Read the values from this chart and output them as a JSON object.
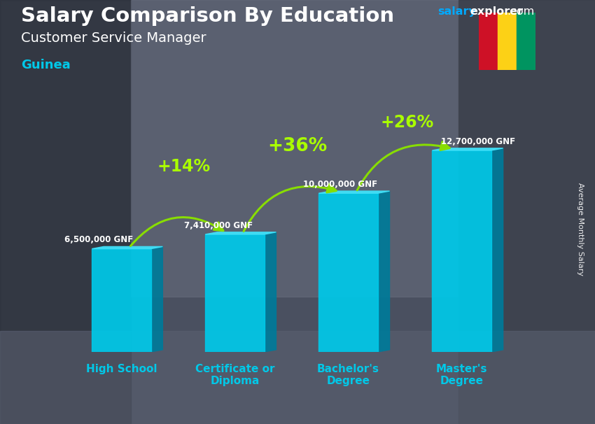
{
  "title": "Salary Comparison By Education",
  "subtitle": "Customer Service Manager",
  "country": "Guinea",
  "ylabel": "Average Monthly Salary",
  "categories": [
    "High School",
    "Certificate or\nDiploma",
    "Bachelor's\nDegree",
    "Master's\nDegree"
  ],
  "values": [
    6500000,
    7410000,
    10000000,
    12700000
  ],
  "bar_color_front": "#00c8e8",
  "bar_color_side": "#007a99",
  "bar_color_top": "#40e0f8",
  "value_labels": [
    "6,500,000 GNF",
    "7,410,000 GNF",
    "10,000,000 GNF",
    "12,700,000 GNF"
  ],
  "pct_labels": [
    "+14%",
    "+36%",
    "+26%"
  ],
  "pct_arrows": [
    [
      0,
      1
    ],
    [
      1,
      2
    ],
    [
      2,
      3
    ]
  ],
  "title_color": "#ffffff",
  "subtitle_color": "#ffffff",
  "country_color": "#00c8e8",
  "value_color": "#ffffff",
  "pct_color": "#aaff00",
  "xlabel_color": "#00c8e8",
  "bg_color": "#4a5060",
  "ylim": [
    0,
    15500000
  ]
}
